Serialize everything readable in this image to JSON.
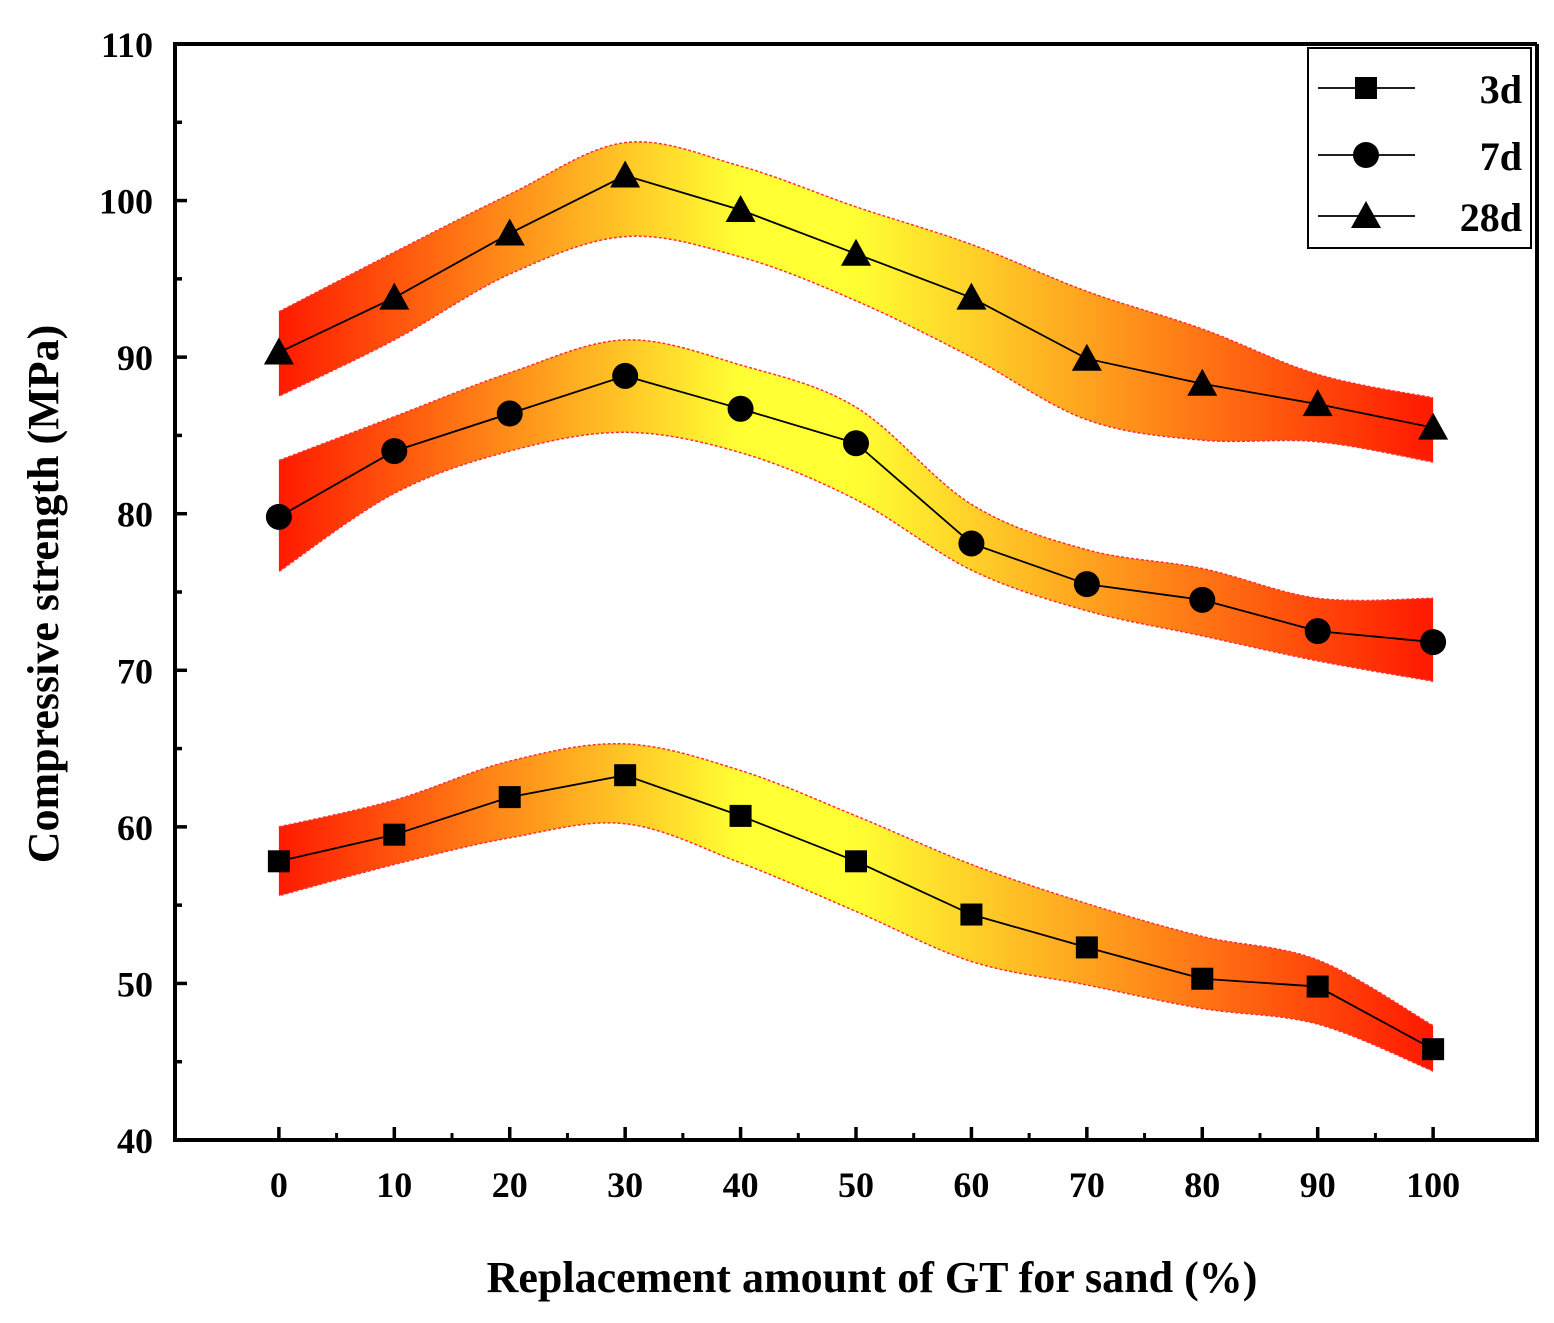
{
  "chart_data": {
    "type": "line",
    "xlabel": "Replacement amount of GT for sand (%)",
    "ylabel": "Compressive strength (MPa)",
    "xlim": [
      -9,
      109
    ],
    "ylim": [
      40,
      110
    ],
    "x": [
      0,
      10,
      20,
      30,
      40,
      50,
      60,
      70,
      80,
      90,
      100
    ],
    "xticks": [
      "0",
      "10",
      "20",
      "30",
      "40",
      "50",
      "60",
      "70",
      "80",
      "90",
      "100"
    ],
    "yticks": [
      "40",
      "50",
      "60",
      "70",
      "80",
      "90",
      "100",
      "110"
    ],
    "legend_position": "top-right",
    "band_colors": {
      "edge": "#ff1a00",
      "center": "#ffff33",
      "outline": "#ff3333"
    },
    "series": [
      {
        "name": "3d",
        "marker": "square",
        "values": [
          57.8,
          59.5,
          61.9,
          63.3,
          60.7,
          57.8,
          54.4,
          52.3,
          50.3,
          49.8,
          45.8
        ],
        "upper": [
          60.0,
          61.7,
          64.2,
          65.3,
          63.6,
          60.7,
          57.6,
          55.1,
          53.0,
          51.5,
          47.3
        ],
        "lower": [
          55.6,
          57.6,
          59.3,
          60.2,
          57.7,
          54.6,
          51.4,
          49.9,
          48.4,
          47.4,
          44.4
        ]
      },
      {
        "name": "7d",
        "marker": "circle",
        "values": [
          79.8,
          84.0,
          86.4,
          88.8,
          86.7,
          84.5,
          78.1,
          75.5,
          74.5,
          72.5,
          71.8
        ],
        "upper": [
          83.4,
          86.2,
          89.0,
          91.1,
          89.5,
          86.8,
          80.6,
          77.7,
          76.5,
          74.6,
          74.6
        ],
        "lower": [
          76.3,
          81.3,
          84.0,
          85.2,
          83.9,
          80.9,
          76.4,
          73.8,
          72.2,
          70.6,
          69.3
        ]
      },
      {
        "name": "28d",
        "marker": "triangle",
        "values": [
          90.3,
          93.8,
          97.9,
          101.6,
          99.4,
          96.6,
          93.8,
          89.9,
          88.3,
          87.0,
          85.5
        ],
        "upper": [
          92.9,
          96.7,
          100.4,
          103.7,
          102.2,
          99.6,
          97.2,
          94.2,
          91.8,
          88.9,
          87.4
        ],
        "lower": [
          87.5,
          91.1,
          95.3,
          97.7,
          96.4,
          93.6,
          90.0,
          86.0,
          84.7,
          84.6,
          83.3
        ]
      }
    ]
  }
}
